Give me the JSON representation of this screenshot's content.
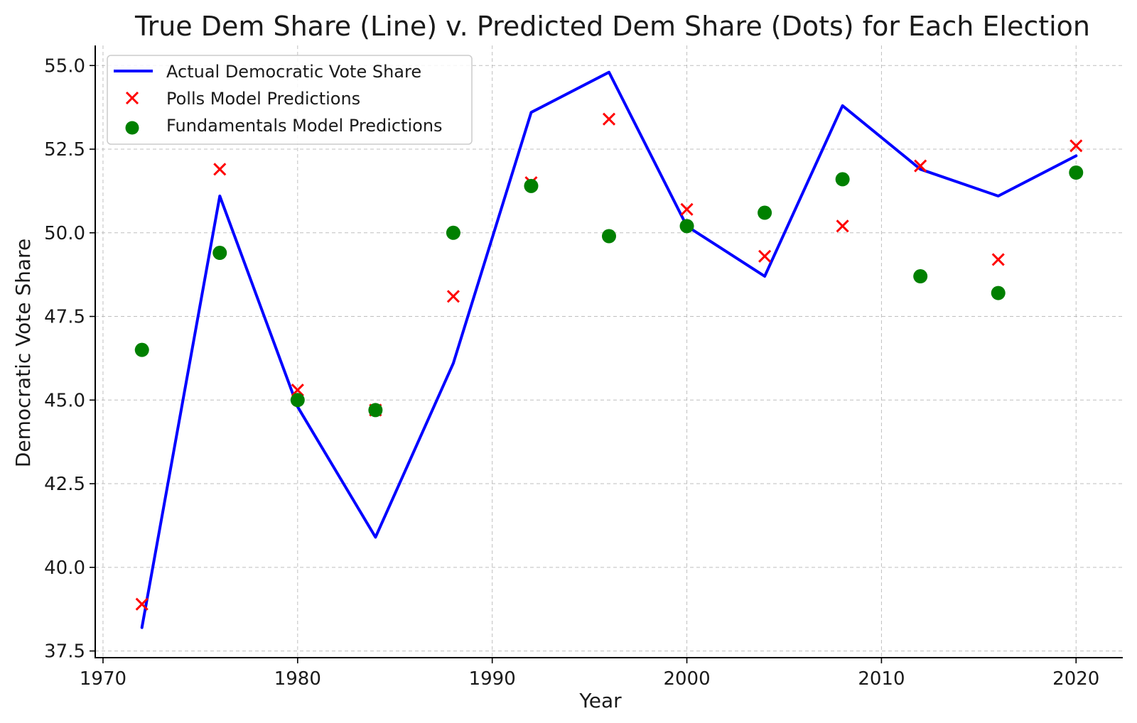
{
  "chart_data": {
    "type": "line",
    "title": "True Dem Share (Line) v. Predicted Dem Share (Dots) for Each Election",
    "xlabel": "Year",
    "ylabel": "Democratic Vote Share",
    "xlim": [
      1969.6,
      2022.4
    ],
    "ylim": [
      37.3,
      55.6
    ],
    "xticks": [
      1970,
      1980,
      1990,
      2000,
      2010,
      2020
    ],
    "yticks": [
      37.5,
      40.0,
      42.5,
      45.0,
      47.5,
      50.0,
      52.5,
      55.0
    ],
    "xtick_labels": [
      "1970",
      "1980",
      "1990",
      "2000",
      "2010",
      "2020"
    ],
    "ytick_labels": [
      "37.5",
      "40.0",
      "42.5",
      "45.0",
      "47.5",
      "50.0",
      "52.5",
      "55.0"
    ],
    "grid": true,
    "legend_position": "top-left",
    "x": [
      1972,
      1976,
      1980,
      1984,
      1988,
      1992,
      1996,
      2000,
      2004,
      2008,
      2012,
      2016,
      2020
    ],
    "series": [
      {
        "name": "Actual Democratic Vote Share",
        "kind": "line",
        "color": "#0000ff",
        "values": [
          38.2,
          51.1,
          44.8,
          40.9,
          46.1,
          53.6,
          54.8,
          50.2,
          48.7,
          53.8,
          51.9,
          51.1,
          52.3
        ]
      },
      {
        "name": "Polls Model Predictions",
        "kind": "x-marker",
        "color": "#ff0000",
        "values": [
          38.9,
          51.9,
          45.3,
          44.7,
          48.1,
          51.5,
          53.4,
          50.7,
          49.3,
          50.2,
          52.0,
          49.2,
          52.6
        ]
      },
      {
        "name": "Fundamentals Model Predictions",
        "kind": "circle-marker",
        "color": "#008000",
        "values": [
          46.5,
          49.4,
          45.0,
          44.7,
          50.0,
          51.4,
          49.9,
          50.2,
          50.6,
          51.6,
          48.7,
          48.2,
          51.8
        ]
      }
    ]
  }
}
